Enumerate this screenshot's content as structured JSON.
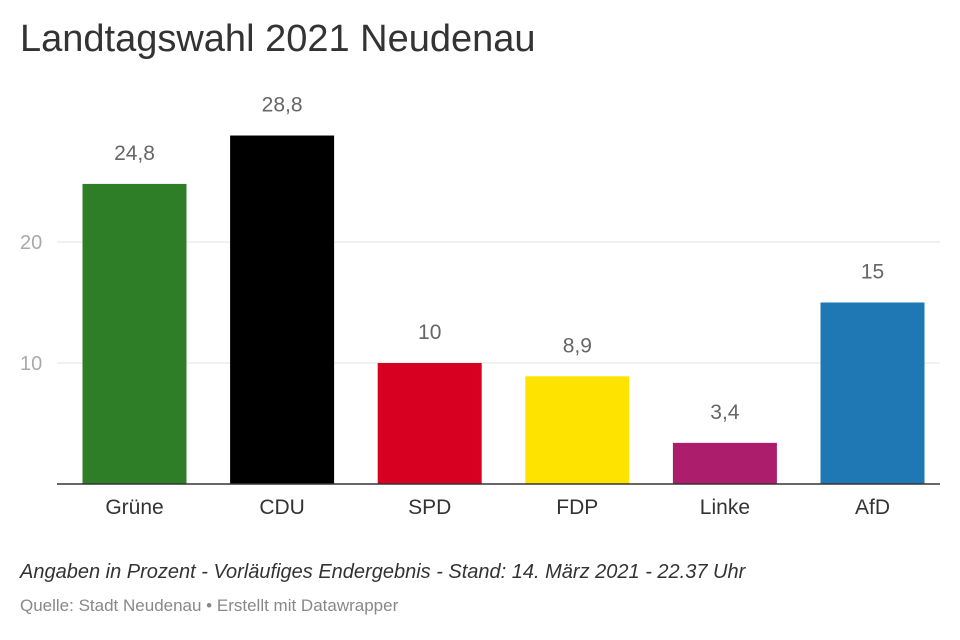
{
  "title": "Landtagswahl 2021 Neudenau",
  "note": "Angaben in Prozent - Vorläufiges Endergebnis - Stand: 14. März 2021 - 22.37 Uhr",
  "source": "Quelle: Stadt Neudenau • Erstellt mit Datawrapper",
  "chart_data": {
    "type": "bar",
    "title": "Landtagswahl 2021 Neudenau",
    "xlabel": "",
    "ylabel": "",
    "categories": [
      "Grüne",
      "CDU",
      "SPD",
      "FDP",
      "Linke",
      "AfD"
    ],
    "values": [
      24.8,
      28.8,
      10,
      8.9,
      3.4,
      15
    ],
    "value_labels": [
      "24,8",
      "28,8",
      "10",
      "8,9",
      "3,4",
      "15"
    ],
    "colors": [
      "#2e7d27",
      "#000000",
      "#d70021",
      "#ffe300",
      "#ac1d6b",
      "#1f77b4"
    ],
    "yticks": [
      10,
      20
    ],
    "ylim": [
      0,
      30
    ],
    "grid": true,
    "legend": "none"
  }
}
